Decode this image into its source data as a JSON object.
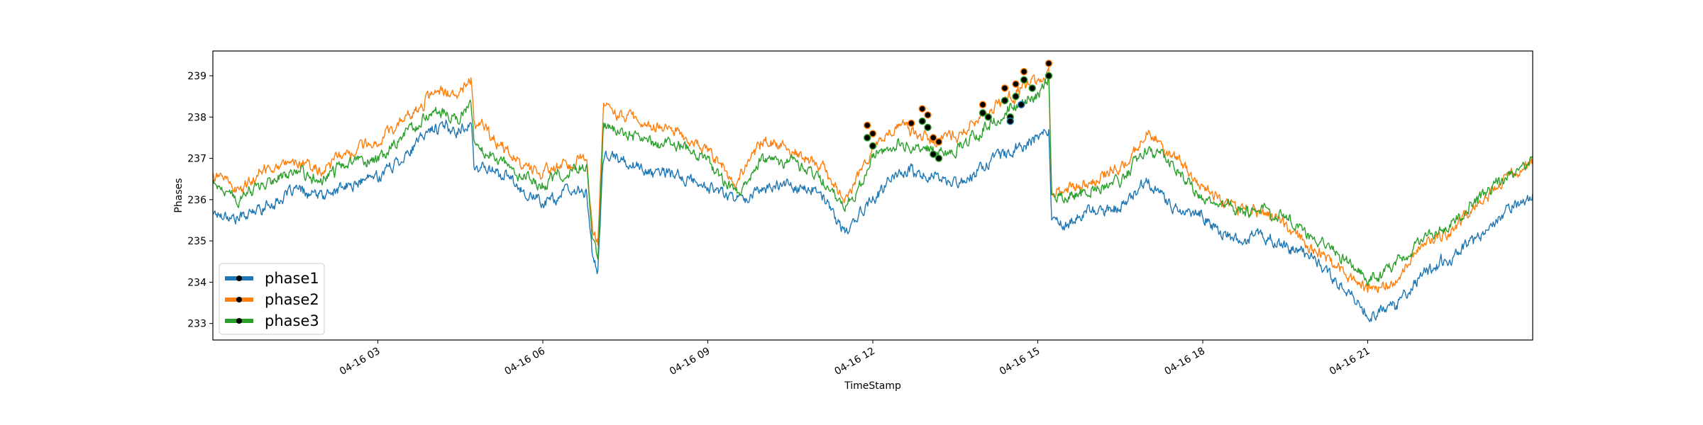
{
  "chart_data": {
    "type": "line",
    "title": "",
    "xlabel": "TimeStamp",
    "ylabel": "Phases",
    "x_unit": "hours on 04-16",
    "xlim": [
      0,
      24
    ],
    "ylim": [
      232.6,
      239.6
    ],
    "x_ticks": [
      {
        "value": 3,
        "label": "04-16 03"
      },
      {
        "value": 6,
        "label": "04-16 06"
      },
      {
        "value": 9,
        "label": "04-16 09"
      },
      {
        "value": 12,
        "label": "04-16 12"
      },
      {
        "value": 15,
        "label": "04-16 15"
      },
      {
        "value": 18,
        "label": "04-16 18"
      },
      {
        "value": 21,
        "label": "04-16 21"
      }
    ],
    "y_ticks": [
      {
        "value": 233,
        "label": "233"
      },
      {
        "value": 234,
        "label": "234"
      },
      {
        "value": 235,
        "label": "235"
      },
      {
        "value": 236,
        "label": "236"
      },
      {
        "value": 237,
        "label": "237"
      },
      {
        "value": 238,
        "label": "238"
      },
      {
        "value": 239,
        "label": "239"
      }
    ],
    "grid": false,
    "legend_position": "lower-left",
    "x": [
      0.0,
      0.5,
      1.0,
      1.5,
      2.0,
      2.5,
      3.0,
      3.5,
      4.0,
      4.5,
      4.7,
      4.75,
      5.0,
      5.5,
      6.0,
      6.4,
      6.8,
      6.9,
      7.0,
      7.1,
      7.5,
      8.0,
      8.5,
      9.0,
      9.5,
      10.0,
      10.5,
      11.0,
      11.5,
      12.0,
      12.5,
      13.0,
      13.5,
      14.0,
      14.5,
      15.0,
      15.2,
      15.25,
      15.5,
      16.0,
      16.5,
      17.0,
      17.5,
      18.0,
      18.5,
      19.0,
      19.5,
      20.0,
      20.5,
      21.0,
      21.5,
      22.0,
      22.5,
      23.0,
      23.5,
      24.0
    ],
    "series": [
      {
        "name": "phase1",
        "color": "#1f77b4",
        "values": [
          235.7,
          235.6,
          235.9,
          236.2,
          236.1,
          236.3,
          236.6,
          237.1,
          237.7,
          237.7,
          237.9,
          236.7,
          236.8,
          236.4,
          235.9,
          236.1,
          236.2,
          234.6,
          234.2,
          237.0,
          236.9,
          236.7,
          236.6,
          236.3,
          236.0,
          236.3,
          236.4,
          236.2,
          235.2,
          236.0,
          236.6,
          236.5,
          236.4,
          236.8,
          237.2,
          237.5,
          237.8,
          235.7,
          235.4,
          235.7,
          235.9,
          236.5,
          235.8,
          235.6,
          235.0,
          235.1,
          234.8,
          234.6,
          234.0,
          233.2,
          233.4,
          234.2,
          234.6,
          235.0,
          235.7,
          236.1
        ]
      },
      {
        "name": "phase2",
        "color": "#ff7f0e",
        "values": [
          236.7,
          236.2,
          236.8,
          237.0,
          236.7,
          237.2,
          237.4,
          238.0,
          238.7,
          238.6,
          238.9,
          237.8,
          237.6,
          237.0,
          236.6,
          236.9,
          237.1,
          235.3,
          235.0,
          238.3,
          238.0,
          237.8,
          237.6,
          237.2,
          236.4,
          237.4,
          237.2,
          236.8,
          236.0,
          237.3,
          237.8,
          237.5,
          237.5,
          238.0,
          238.5,
          238.8,
          239.2,
          236.2,
          236.1,
          236.5,
          236.8,
          237.6,
          237.0,
          236.3,
          235.9,
          235.7,
          235.4,
          234.8,
          234.4,
          233.8,
          234.0,
          234.8,
          235.2,
          235.9,
          236.5,
          237.0
        ]
      },
      {
        "name": "phase3",
        "color": "#2ca02c",
        "values": [
          236.4,
          236.0,
          236.5,
          236.7,
          236.4,
          236.9,
          237.0,
          237.6,
          238.2,
          238.1,
          238.3,
          237.3,
          237.1,
          236.7,
          236.3,
          236.6,
          236.8,
          235.0,
          234.5,
          237.8,
          237.6,
          237.4,
          237.3,
          237.0,
          236.2,
          237.0,
          236.9,
          236.5,
          235.8,
          237.0,
          237.4,
          237.2,
          237.2,
          237.7,
          238.2,
          238.5,
          239.0,
          236.1,
          236.0,
          236.3,
          236.5,
          237.3,
          236.8,
          236.0,
          235.8,
          235.8,
          235.6,
          235.0,
          234.7,
          234.0,
          234.4,
          235.1,
          235.4,
          236.0,
          236.5,
          236.9
        ]
      }
    ],
    "highlight_points": {
      "marker_face": "#000000",
      "series": [
        {
          "name": "phase2",
          "points": [
            [
              11.9,
              237.8
            ],
            [
              12.0,
              237.6
            ],
            [
              12.7,
              237.85
            ],
            [
              12.9,
              238.2
            ],
            [
              13.0,
              238.05
            ],
            [
              13.1,
              237.5
            ],
            [
              13.2,
              237.4
            ],
            [
              14.0,
              238.3
            ],
            [
              14.4,
              238.7
            ],
            [
              14.6,
              238.8
            ],
            [
              14.75,
              239.1
            ],
            [
              15.2,
              239.3
            ]
          ]
        },
        {
          "name": "phase3",
          "points": [
            [
              11.9,
              237.5
            ],
            [
              12.0,
              237.3
            ],
            [
              12.9,
              237.9
            ],
            [
              13.0,
              237.75
            ],
            [
              13.1,
              237.1
            ],
            [
              13.2,
              237.0
            ],
            [
              14.0,
              238.1
            ],
            [
              14.1,
              238.0
            ],
            [
              14.4,
              238.4
            ],
            [
              14.5,
              238.0
            ],
            [
              14.6,
              238.5
            ],
            [
              14.75,
              238.9
            ],
            [
              14.9,
              238.7
            ],
            [
              15.2,
              239.0
            ]
          ]
        },
        {
          "name": "phase1",
          "points": [
            [
              14.5,
              237.9
            ],
            [
              14.7,
              238.3
            ]
          ]
        }
      ]
    }
  }
}
